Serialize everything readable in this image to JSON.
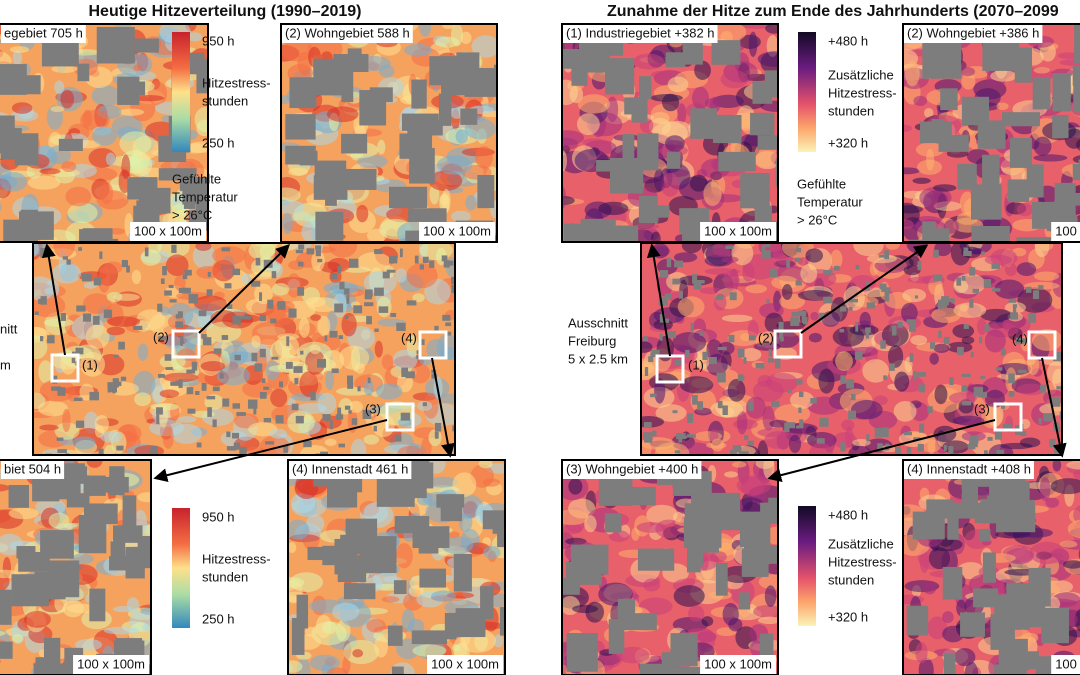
{
  "left": {
    "title": "Heutige Hitzeverteilung (1990–2019)",
    "panels": [
      {
        "label": "egebiet 705 h",
        "scale": "100 x 100m"
      },
      {
        "label": "(2) Wohngebiet 588 h",
        "scale": "100 x 100m"
      },
      {
        "label": "biet 504 h",
        "scale": "100 x 100m"
      },
      {
        "label": "(4) Innenstadt 461 h",
        "scale": "100 x 100m"
      }
    ],
    "legend_top": {
      "max": "950 h",
      "label": [
        "Hitzestress-",
        "stunden"
      ],
      "min": "250 h"
    },
    "note": [
      "Gefühlte",
      "Temperatur",
      "> 26°C"
    ],
    "legend_bottom": {
      "max": "950 h",
      "label": [
        "Hitzestress-",
        "stunden"
      ],
      "min": "250 h"
    },
    "extent": [
      "nitt",
      "m"
    ],
    "markers": [
      "(1)",
      "(2)",
      "(3)",
      "(4)"
    ]
  },
  "right": {
    "title": "Zunahme der Hitze zum Ende des Jahrhunderts (2070–2099",
    "panels": [
      {
        "label": "(1) Industriegebiet  +382 h",
        "scale": "100 x 100m"
      },
      {
        "label": "(2) Wohngebiet +386 h",
        "scale": "100 x"
      },
      {
        "label": "(3) Wohngebiet +400 h",
        "scale": "100 x 100m"
      },
      {
        "label": "(4) Innenstadt +408 h",
        "scale": "100 x"
      }
    ],
    "legend_top": {
      "max": "+480 h",
      "label": [
        "Zusätzliche",
        "Hitzestress-",
        "stunden"
      ],
      "min": "+320 h"
    },
    "note": [
      "Gefühlte",
      "Temperatur",
      "> 26°C"
    ],
    "legend_bottom": {
      "max": "+480 h",
      "label": [
        "Zusätzliche",
        "Hitzestress-",
        "stunden"
      ],
      "min": "+320 h"
    },
    "extent": [
      "Ausschnitt",
      "Freiburg",
      "5 x 2.5 km"
    ],
    "markers": [
      "(1)",
      "(2)",
      "(3)",
      "(4)"
    ]
  }
}
